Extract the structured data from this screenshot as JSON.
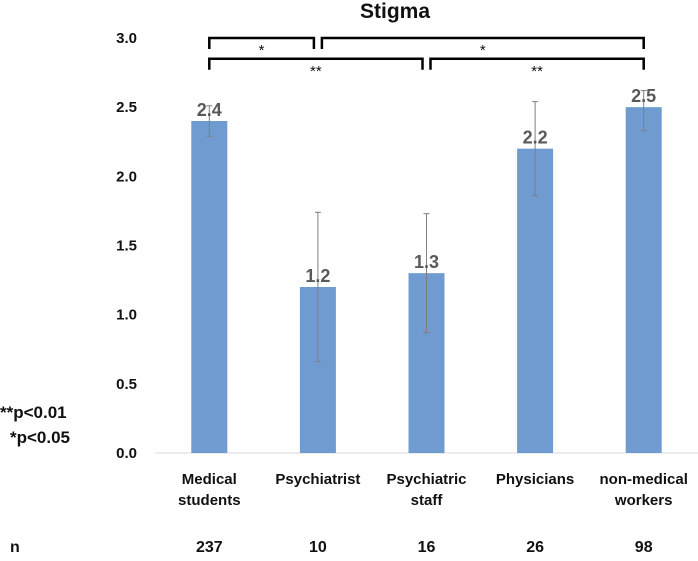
{
  "chart_data": {
    "type": "bar",
    "title": "Stigma",
    "categories": [
      [
        "Medical",
        "students"
      ],
      [
        "Psychiatrist"
      ],
      [
        "Psychiatric",
        "staff"
      ],
      [
        "Physicians"
      ],
      [
        "non-medical",
        "workers"
      ]
    ],
    "values": [
      2.4,
      1.2,
      1.3,
      2.2,
      2.5
    ],
    "value_labels": [
      "2.4",
      "1.2",
      "1.3",
      "2.2",
      "2.5"
    ],
    "error_low": [
      2.29,
      0.66,
      0.87,
      1.86,
      2.33
    ],
    "error_high": [
      2.51,
      1.74,
      1.73,
      2.54,
      2.62
    ],
    "yticks": [
      "0.0",
      "0.5",
      "1.0",
      "1.5",
      "2.0",
      "2.5",
      "3.0"
    ],
    "ylim": [
      0,
      3.0
    ],
    "bar_color": "#6f9bd1",
    "error_color": "#7f7f7f",
    "n_label": "n",
    "n_values": [
      "237",
      "10",
      "16",
      "26",
      "98"
    ],
    "significance": [
      {
        "from": 0,
        "to": 1,
        "level": 3.0,
        "label": "*"
      },
      {
        "from": 1,
        "to": 4,
        "level": 3.0,
        "label": "*"
      },
      {
        "from": 0,
        "to": 2,
        "level": 2.85,
        "label": "**"
      },
      {
        "from": 2,
        "to": 4,
        "level": 2.85,
        "label": "**"
      }
    ],
    "legend": [
      "**p<0.01",
      "*p<0.05"
    ]
  }
}
